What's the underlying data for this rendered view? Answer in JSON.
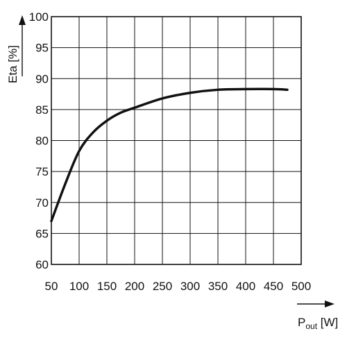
{
  "chart_data": {
    "type": "line",
    "xlabel_main": "P",
    "xlabel_sub": "out",
    "xlabel_unit": " [W]",
    "ylabel": "Eta [%]",
    "xlim": [
      50,
      500
    ],
    "ylim": [
      60,
      100
    ],
    "x_ticks": [
      "50",
      "100",
      "150",
      "200",
      "250",
      "300",
      "350",
      "400",
      "450",
      "500"
    ],
    "y_ticks": [
      "60",
      "65",
      "70",
      "75",
      "80",
      "85",
      "90",
      "95",
      "100"
    ],
    "grid": true,
    "series": [
      {
        "x": [
          50,
          75,
          100,
          125,
          150,
          175,
          200,
          250,
          300,
          350,
          400,
          450,
          475
        ],
        "y": [
          67,
          73,
          78.3,
          81.3,
          83.2,
          84.5,
          85.3,
          86.8,
          87.7,
          88.2,
          88.3,
          88.3,
          88.2
        ],
        "color": "#111111"
      }
    ]
  }
}
